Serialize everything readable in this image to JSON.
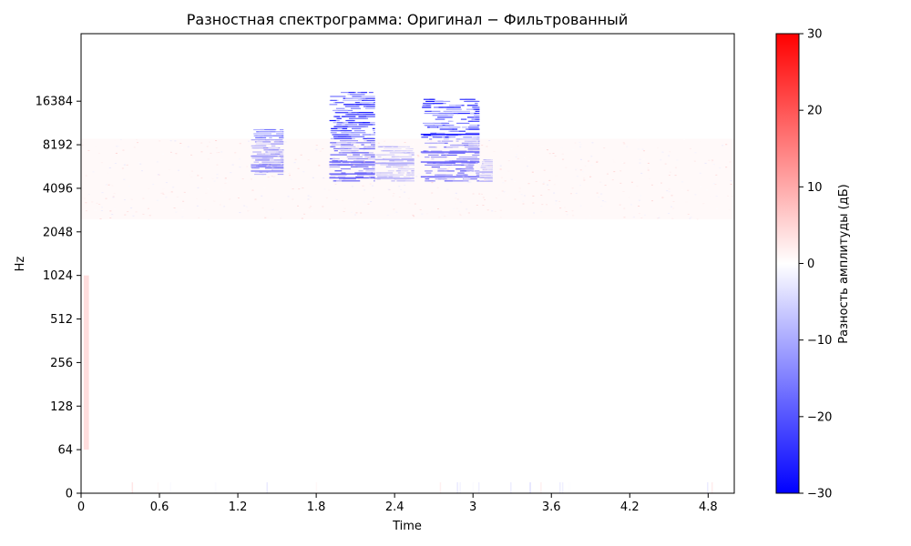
{
  "chart_data": {
    "type": "heatmap",
    "title": "Разностная спектрограмма: Оригинал − Фильтрованный",
    "xlabel": "Time",
    "ylabel": "Hz",
    "xlim": [
      0,
      5.0
    ],
    "x_ticks": [
      0,
      0.6,
      1.2,
      1.8,
      2.4,
      3.0,
      3.6,
      4.2,
      4.8
    ],
    "x_tick_labels": [
      "0",
      "0.6",
      "1.2",
      "1.8",
      "2.4",
      "3",
      "3.6",
      "4.2",
      "4.8"
    ],
    "y_scale": "log2",
    "y_ticks": [
      0,
      64,
      128,
      256,
      512,
      1024,
      2048,
      4096,
      8192,
      16384
    ],
    "y_tick_labels": [
      "0",
      "64",
      "128",
      "256",
      "512",
      "1024",
      "2048",
      "4096",
      "8192",
      "16384"
    ],
    "colorbar": {
      "label": "Разность амплитуды (дБ)",
      "colormap": "bwr",
      "range": [
        -30,
        30
      ],
      "ticks": [
        30,
        20,
        10,
        0,
        -10,
        -20,
        -30
      ],
      "tick_labels": [
        "30",
        "20",
        "10",
        "0",
        "−10",
        "−20",
        "−30"
      ],
      "low_color": "#0000ff",
      "mid_color": "#ffffff",
      "high_color": "#ff0000"
    },
    "features": [
      {
        "kind": "negative",
        "t_start": 1.3,
        "t_end": 1.55,
        "f_low": 5000,
        "f_high": 10500,
        "strength": 18
      },
      {
        "kind": "negative",
        "t_start": 1.9,
        "t_end": 2.25,
        "f_low": 4500,
        "f_high": 19000,
        "strength": 24
      },
      {
        "kind": "negative",
        "t_start": 2.25,
        "t_end": 2.55,
        "f_low": 4500,
        "f_high": 8000,
        "strength": 12
      },
      {
        "kind": "negative",
        "t_start": 2.6,
        "t_end": 3.05,
        "f_low": 4500,
        "f_high": 17000,
        "strength": 24
      },
      {
        "kind": "negative",
        "t_start": 3.05,
        "t_end": 3.15,
        "f_low": 4500,
        "f_high": 6500,
        "strength": 10
      },
      {
        "kind": "positive",
        "t_start": 0.0,
        "t_end": 5.0,
        "f_low": 2500,
        "f_high": 9000,
        "strength": 4
      },
      {
        "kind": "positive",
        "t_start": 0.02,
        "t_end": 0.06,
        "f_low": 64,
        "f_high": 1024,
        "strength": 5
      }
    ]
  }
}
